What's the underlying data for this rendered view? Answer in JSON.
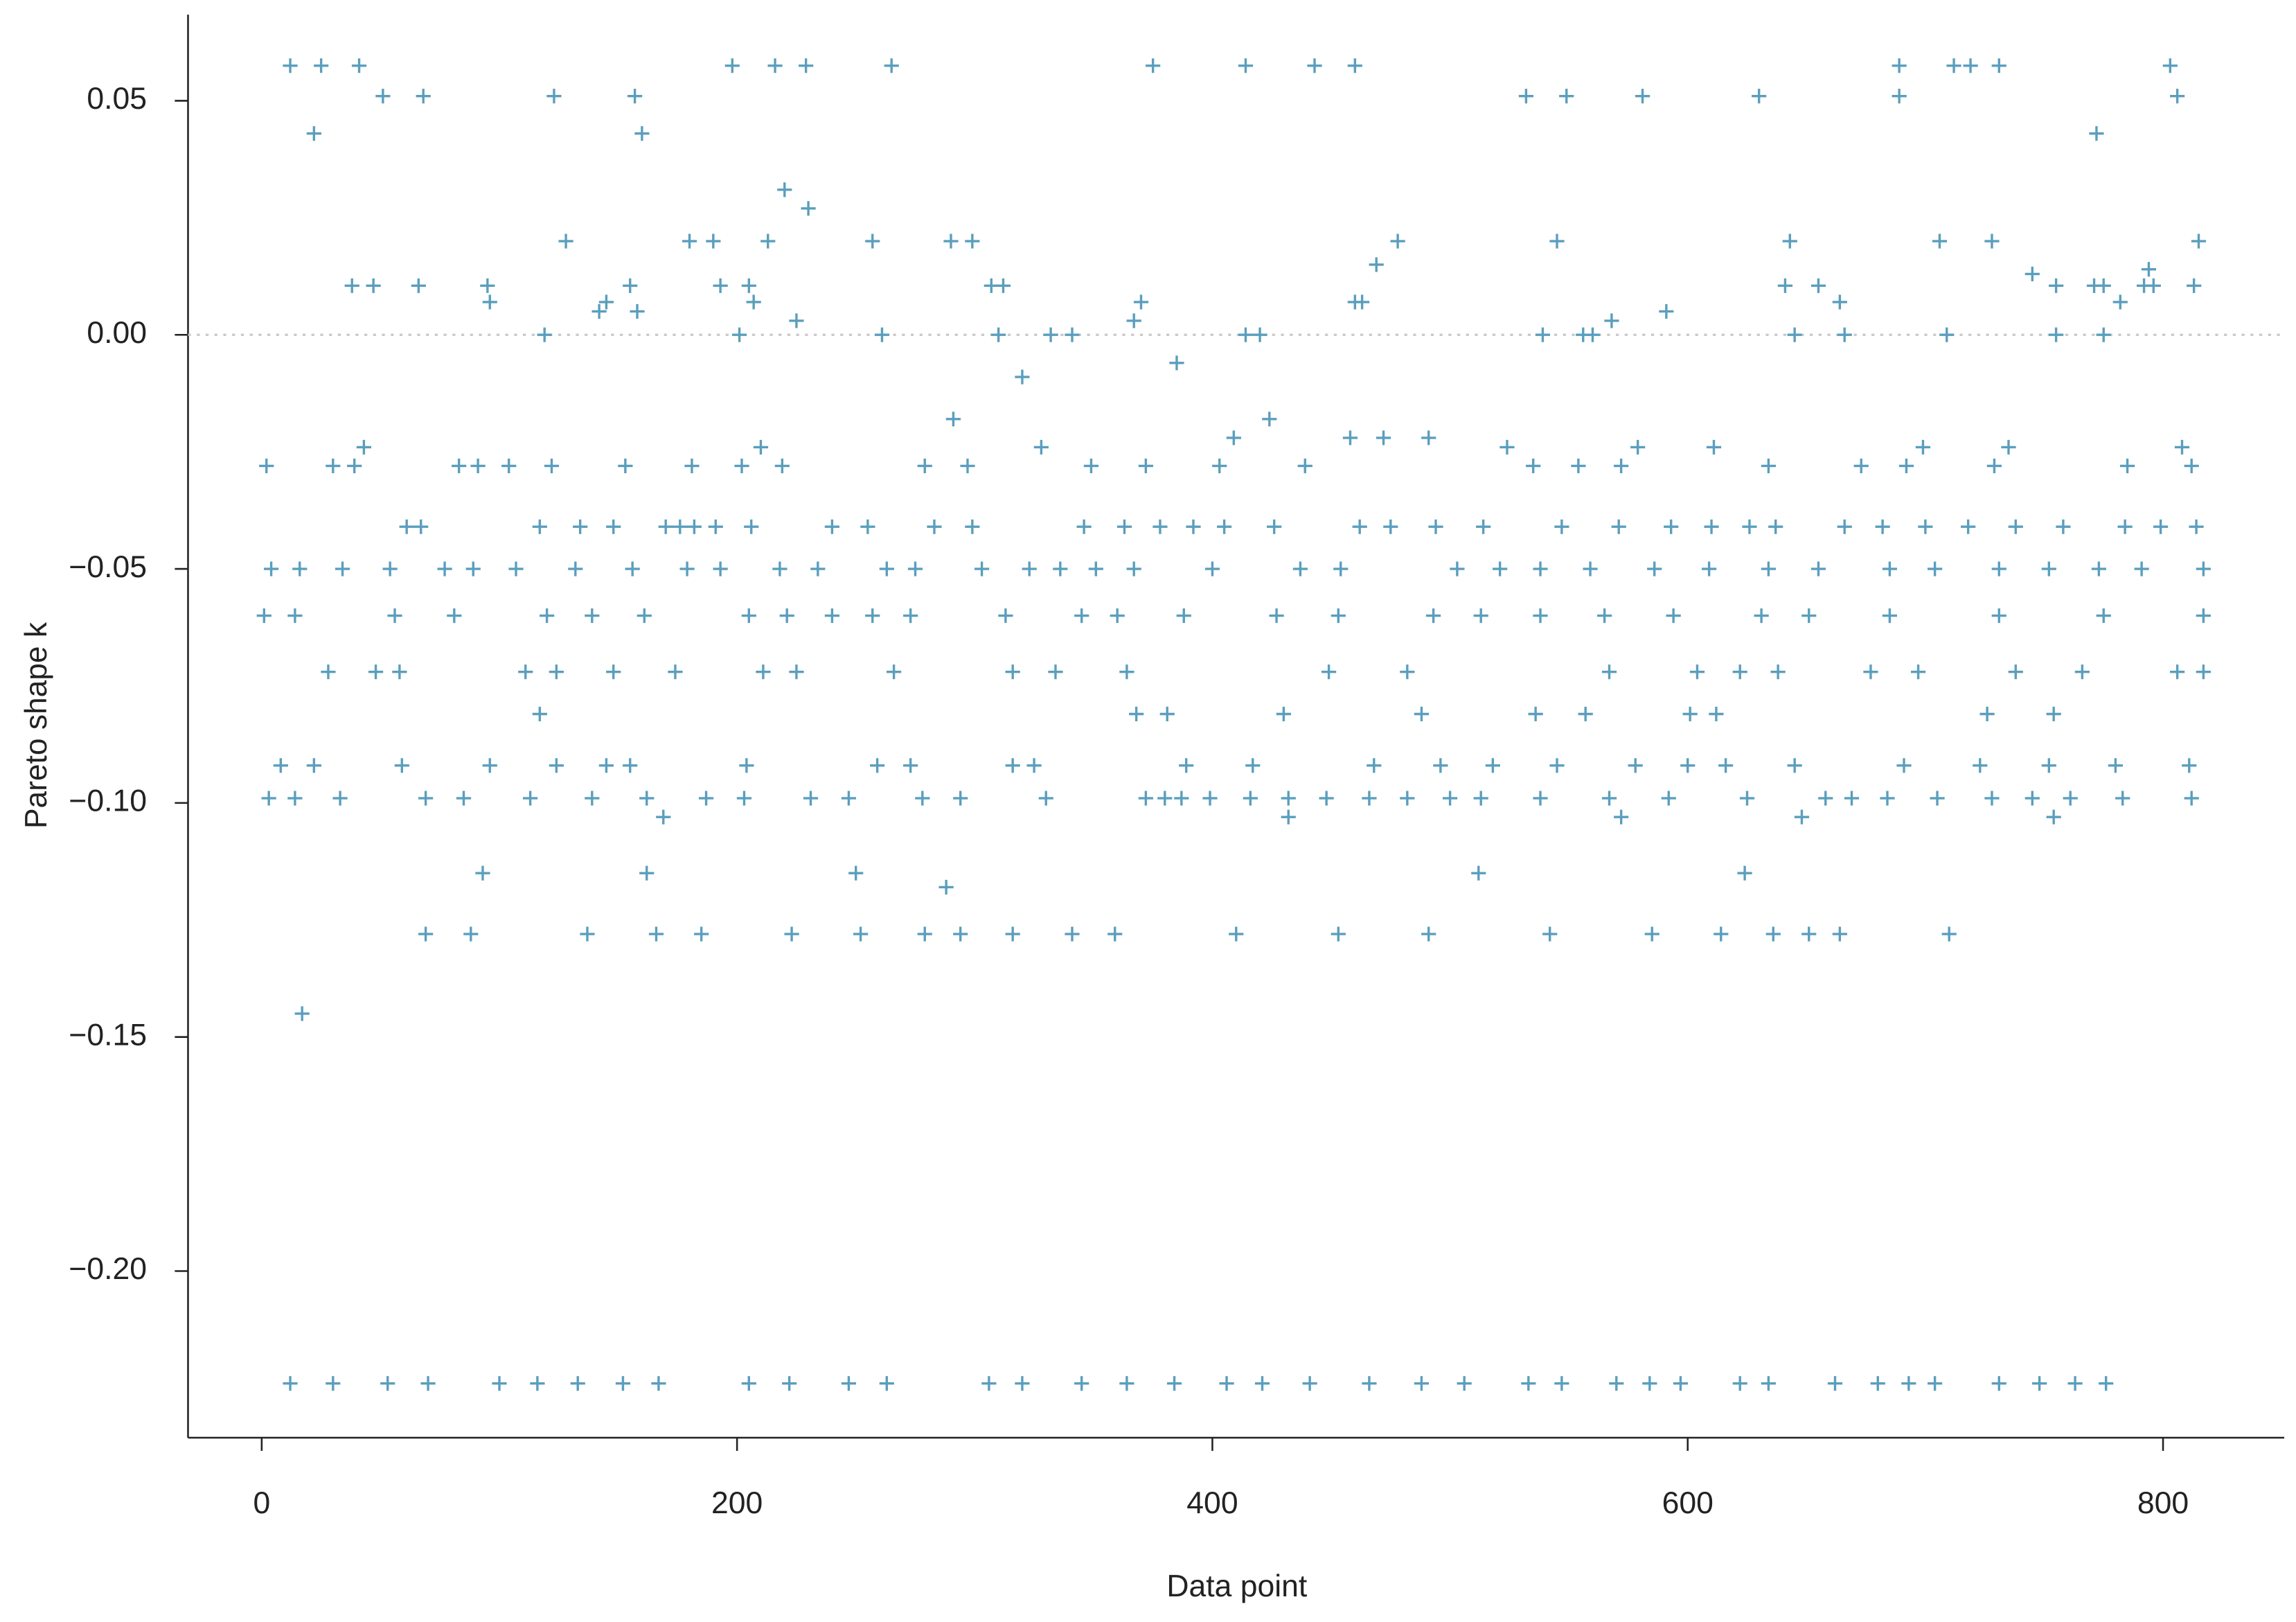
{
  "chart_data": {
    "type": "scatter",
    "xlabel": "Data point",
    "ylabel": "Pareto shape k",
    "color": "#5a9ebd",
    "marker": "+",
    "xlim": [
      -31,
      851
    ],
    "ylim": [
      -0.2356,
      0.0684
    ],
    "xticks": [
      0,
      200,
      400,
      600,
      800
    ],
    "yticks": [
      {
        "value": -0.2,
        "label": "−0.20"
      },
      {
        "value": -0.15,
        "label": "−0.15"
      },
      {
        "value": -0.1,
        "label": "−0.10"
      },
      {
        "value": -0.05,
        "label": "−0.05"
      },
      {
        "value": 0,
        "label": "0.00"
      },
      0.05
    ],
    "reference_line": 0,
    "x": [
      12,
      25,
      41,
      198,
      216,
      229,
      265,
      375,
      414,
      443,
      460,
      689,
      712,
      719,
      731,
      803,
      51,
      68,
      123,
      157,
      532,
      549,
      581,
      630,
      689,
      806,
      22,
      160,
      772,
      220,
      230,
      128,
      180,
      190,
      213,
      257,
      290,
      299,
      478,
      545,
      643,
      706,
      728,
      815,
      38,
      47,
      66,
      95,
      155,
      193,
      205,
      307,
      312,
      641,
      655,
      755,
      771,
      775,
      792,
      796,
      813,
      469,
      745,
      794,
      96,
      145,
      207,
      370,
      460,
      463,
      664,
      782,
      225,
      367,
      568,
      142,
      158,
      591,
      119,
      201,
      261,
      310,
      332,
      341,
      414,
      420,
      539,
      556,
      560,
      645,
      666,
      709,
      755,
      775,
      385,
      320,
      291,
      424,
      409,
      458,
      472,
      491,
      43,
      210,
      328,
      524,
      579,
      611,
      699,
      735,
      808,
      2,
      30,
      39,
      83,
      91,
      104,
      122,
      153,
      181,
      202,
      219,
      279,
      297,
      349,
      372,
      403,
      439,
      535,
      554,
      572,
      634,
      673,
      692,
      729,
      785,
      812,
      61,
      67,
      117,
      134,
      148,
      170,
      176,
      182,
      191,
      206,
      240,
      255,
      283,
      299,
      346,
      363,
      378,
      392,
      405,
      426,
      462,
      475,
      494,
      514,
      547,
      571,
      593,
      610,
      626,
      637,
      666,
      682,
      700,
      718,
      738,
      758,
      784,
      799,
      814,
      4,
      16,
      34,
      54,
      77,
      89,
      107,
      132,
      156,
      179,
      193,
      218,
      234,
      263,
      275,
      303,
      323,
      336,
      351,
      367,
      400,
      437,
      454,
      503,
      521,
      538,
      559,
      586,
      609,
      634,
      655,
      685,
      704,
      731,
      752,
      773,
      791,
      817,
      1,
      14,
      56,
      81,
      120,
      139,
      161,
      205,
      221,
      240,
      257,
      273,
      313,
      345,
      360,
      388,
      427,
      453,
      493,
      513,
      538,
      565,
      594,
      631,
      651,
      685,
      731,
      775,
      817,
      28,
      48,
      58,
      111,
      124,
      148,
      174,
      211,
      225,
      266,
      316,
      334,
      364,
      449,
      482,
      567,
      604,
      622,
      638,
      677,
      697,
      738,
      766,
      806,
      817,
      117,
      368,
      381,
      430,
      488,
      536,
      557,
      601,
      612,
      726,
      754,
      8,
      22,
      59,
      96,
      124,
      145,
      155,
      204,
      259,
      273,
      316,
      325,
      389,
      417,
      468,
      496,
      518,
      545,
      578,
      600,
      616,
      645,
      691,
      723,
      752,
      780,
      811,
      3,
      14,
      33,
      69,
      85,
      113,
      139,
      162,
      187,
      203,
      231,
      247,
      278,
      294,
      330,
      372,
      380,
      387,
      399,
      416,
      432,
      448,
      466,
      482,
      500,
      513,
      538,
      567,
      592,
      625,
      658,
      669,
      684,
      705,
      728,
      745,
      761,
      783,
      812,
      169,
      432,
      572,
      648,
      754,
      93,
      162,
      250,
      512,
      624,
      288,
      69,
      88,
      137,
      166,
      185,
      223,
      252,
      279,
      294,
      316,
      341,
      359,
      410,
      453,
      491,
      542,
      585,
      614,
      636,
      651,
      664,
      710,
      17,
      12,
      30,
      53,
      70,
      100,
      116,
      133,
      152,
      167,
      205,
      222,
      247,
      263,
      306,
      320,
      345,
      364,
      384,
      406,
      421,
      441,
      466,
      488,
      506,
      533,
      547,
      570,
      584,
      597,
      622,
      634,
      662,
      680,
      693,
      704,
      731,
      748,
      763,
      776
    ],
    "values": [
      0.0575,
      0.0575,
      0.0575,
      0.0575,
      0.0575,
      0.0575,
      0.0575,
      0.0575,
      0.0575,
      0.0575,
      0.0575,
      0.0575,
      0.0575,
      0.0575,
      0.0575,
      0.0575,
      0.051,
      0.051,
      0.051,
      0.051,
      0.051,
      0.051,
      0.051,
      0.051,
      0.051,
      0.051,
      0.043,
      0.043,
      0.043,
      0.031,
      0.027,
      0.02,
      0.02,
      0.02,
      0.02,
      0.02,
      0.02,
      0.02,
      0.02,
      0.02,
      0.02,
      0.02,
      0.02,
      0.02,
      0.0105,
      0.0105,
      0.0105,
      0.0105,
      0.0105,
      0.0105,
      0.0105,
      0.0105,
      0.0105,
      0.0105,
      0.0105,
      0.0105,
      0.0105,
      0.0105,
      0.0105,
      0.0105,
      0.0105,
      0.015,
      0.013,
      0.014,
      0.007,
      0.007,
      0.007,
      0.007,
      0.007,
      0.007,
      0.007,
      0.007,
      0.003,
      0.003,
      0.003,
      0.005,
      0.005,
      0.005,
      0,
      0,
      0,
      0,
      0,
      0,
      0,
      0,
      0,
      0,
      0,
      0,
      0,
      0,
      0,
      0,
      -0.006,
      -0.009,
      -0.018,
      -0.018,
      -0.022,
      -0.022,
      -0.022,
      -0.022,
      -0.024,
      -0.024,
      -0.024,
      -0.024,
      -0.024,
      -0.024,
      -0.024,
      -0.024,
      -0.024,
      -0.028,
      -0.028,
      -0.028,
      -0.028,
      -0.028,
      -0.028,
      -0.028,
      -0.028,
      -0.028,
      -0.028,
      -0.028,
      -0.028,
      -0.028,
      -0.028,
      -0.028,
      -0.028,
      -0.028,
      -0.028,
      -0.028,
      -0.028,
      -0.028,
      -0.028,
      -0.028,
      -0.028,
      -0.028,
      -0.028,
      -0.041,
      -0.041,
      -0.041,
      -0.041,
      -0.041,
      -0.041,
      -0.041,
      -0.041,
      -0.041,
      -0.041,
      -0.041,
      -0.041,
      -0.041,
      -0.041,
      -0.041,
      -0.041,
      -0.041,
      -0.041,
      -0.041,
      -0.041,
      -0.041,
      -0.041,
      -0.041,
      -0.041,
      -0.041,
      -0.041,
      -0.041,
      -0.041,
      -0.041,
      -0.041,
      -0.041,
      -0.041,
      -0.041,
      -0.041,
      -0.041,
      -0.041,
      -0.041,
      -0.041,
      -0.041,
      -0.05,
      -0.05,
      -0.05,
      -0.05,
      -0.05,
      -0.05,
      -0.05,
      -0.05,
      -0.05,
      -0.05,
      -0.05,
      -0.05,
      -0.05,
      -0.05,
      -0.05,
      -0.05,
      -0.05,
      -0.05,
      -0.05,
      -0.05,
      -0.05,
      -0.05,
      -0.05,
      -0.05,
      -0.05,
      -0.05,
      -0.05,
      -0.05,
      -0.05,
      -0.05,
      -0.05,
      -0.05,
      -0.05,
      -0.05,
      -0.05,
      -0.05,
      -0.05,
      -0.05,
      -0.06,
      -0.06,
      -0.06,
      -0.06,
      -0.06,
      -0.06,
      -0.06,
      -0.06,
      -0.06,
      -0.06,
      -0.06,
      -0.06,
      -0.06,
      -0.06,
      -0.06,
      -0.06,
      -0.06,
      -0.06,
      -0.06,
      -0.06,
      -0.06,
      -0.06,
      -0.06,
      -0.06,
      -0.06,
      -0.06,
      -0.06,
      -0.06,
      -0.06,
      -0.072,
      -0.072,
      -0.072,
      -0.072,
      -0.072,
      -0.072,
      -0.072,
      -0.072,
      -0.072,
      -0.072,
      -0.072,
      -0.072,
      -0.072,
      -0.072,
      -0.072,
      -0.072,
      -0.072,
      -0.072,
      -0.072,
      -0.072,
      -0.072,
      -0.072,
      -0.072,
      -0.072,
      -0.072,
      -0.081,
      -0.081,
      -0.081,
      -0.081,
      -0.081,
      -0.081,
      -0.081,
      -0.081,
      -0.081,
      -0.081,
      -0.081,
      -0.092,
      -0.092,
      -0.092,
      -0.092,
      -0.092,
      -0.092,
      -0.092,
      -0.092,
      -0.092,
      -0.092,
      -0.092,
      -0.092,
      -0.092,
      -0.092,
      -0.092,
      -0.092,
      -0.092,
      -0.092,
      -0.092,
      -0.092,
      -0.092,
      -0.092,
      -0.092,
      -0.092,
      -0.092,
      -0.092,
      -0.092,
      -0.099,
      -0.099,
      -0.099,
      -0.099,
      -0.099,
      -0.099,
      -0.099,
      -0.099,
      -0.099,
      -0.099,
      -0.099,
      -0.099,
      -0.099,
      -0.099,
      -0.099,
      -0.099,
      -0.099,
      -0.099,
      -0.099,
      -0.099,
      -0.099,
      -0.099,
      -0.099,
      -0.099,
      -0.099,
      -0.099,
      -0.099,
      -0.099,
      -0.099,
      -0.099,
      -0.099,
      -0.099,
      -0.099,
      -0.099,
      -0.099,
      -0.099,
      -0.099,
      -0.099,
      -0.099,
      -0.103,
      -0.103,
      -0.103,
      -0.103,
      -0.103,
      -0.115,
      -0.115,
      -0.115,
      -0.115,
      -0.115,
      -0.118,
      -0.128,
      -0.128,
      -0.128,
      -0.128,
      -0.128,
      -0.128,
      -0.128,
      -0.128,
      -0.128,
      -0.128,
      -0.128,
      -0.128,
      -0.128,
      -0.128,
      -0.128,
      -0.128,
      -0.128,
      -0.128,
      -0.128,
      -0.128,
      -0.128,
      -0.128,
      -0.145,
      -0.224,
      -0.224,
      -0.224,
      -0.224,
      -0.224,
      -0.224,
      -0.224,
      -0.224,
      -0.224,
      -0.224,
      -0.224,
      -0.224,
      -0.224,
      -0.224,
      -0.224,
      -0.224,
      -0.224,
      -0.224,
      -0.224,
      -0.224,
      -0.224,
      -0.224,
      -0.224,
      -0.224,
      -0.224,
      -0.224,
      -0.224,
      -0.224,
      -0.224,
      -0.224,
      -0.224,
      -0.224,
      -0.224,
      -0.224,
      -0.224,
      -0.224,
      -0.224,
      -0.224,
      -0.224
    ]
  }
}
